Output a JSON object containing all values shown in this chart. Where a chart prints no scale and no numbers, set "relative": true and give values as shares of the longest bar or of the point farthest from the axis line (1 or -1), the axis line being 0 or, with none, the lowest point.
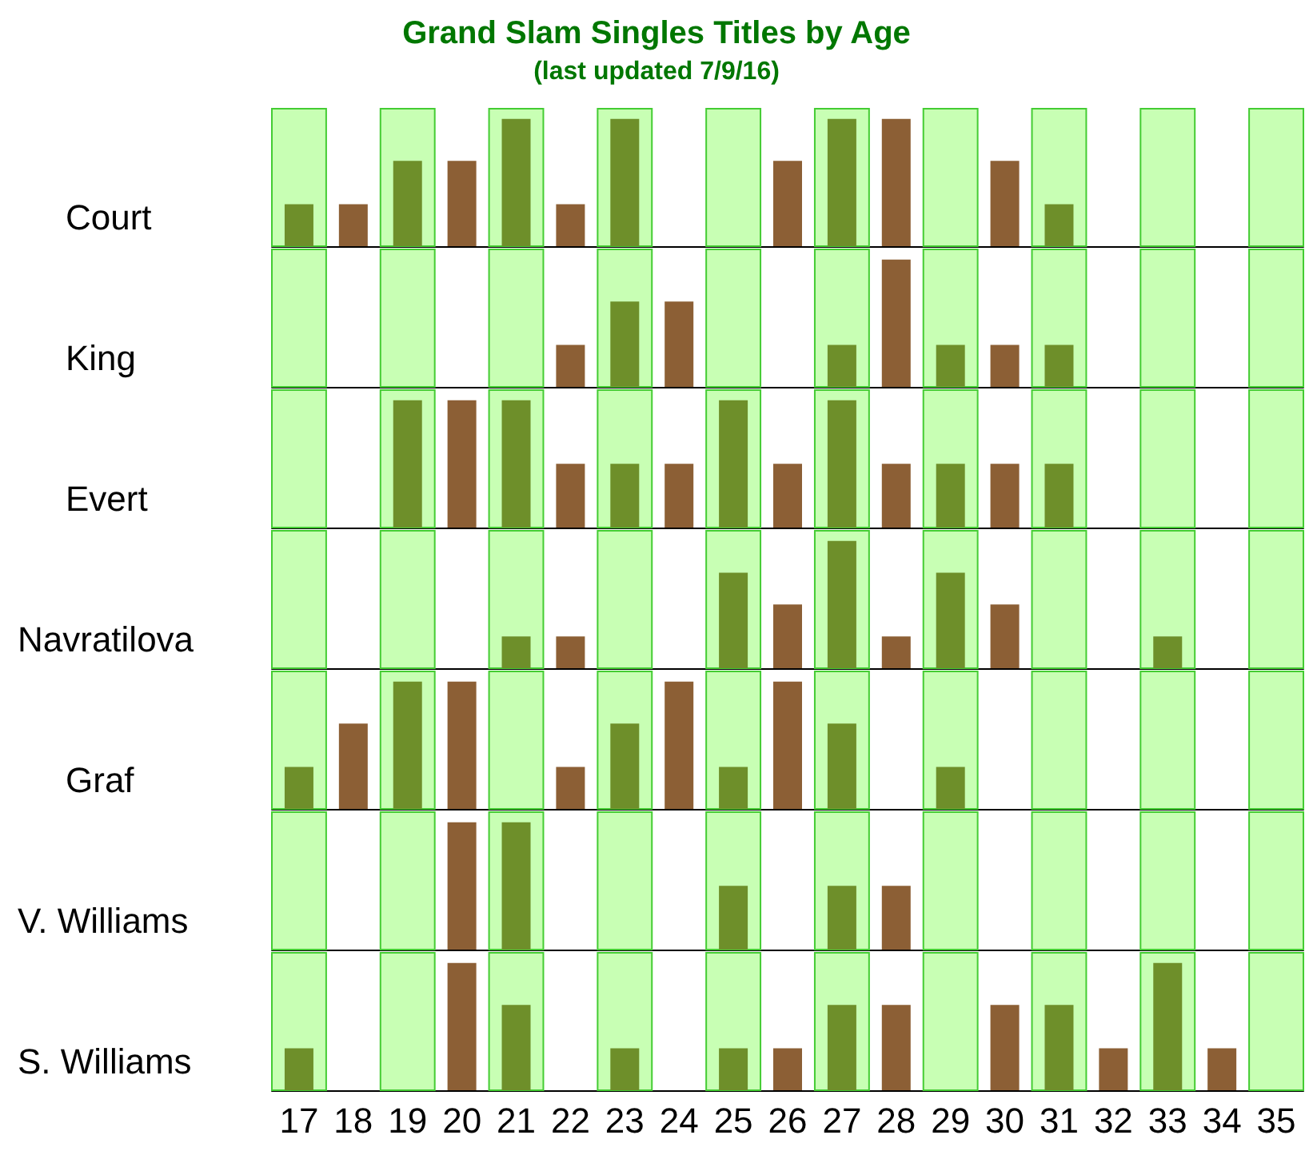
{
  "chart_data": [
    {
      "type": "bar",
      "title": "Grand Slam Singles Titles by Age",
      "subtitle": "(last updated 7/9/16)",
      "ylabel": "Court",
      "relative": true,
      "tick_labels": false,
      "categories": [
        "17",
        "18",
        "19",
        "20",
        "21",
        "22",
        "23",
        "24",
        "25",
        "26",
        "27",
        "28",
        "29",
        "30",
        "31",
        "32",
        "33",
        "34",
        "35"
      ],
      "values": [
        0.33,
        0.33,
        0.67,
        0.67,
        1,
        0.33,
        1,
        0,
        0,
        0.67,
        1,
        1,
        0,
        0.67,
        0.33,
        0,
        0,
        0,
        0
      ],
      "colors": [
        "#6e8f2a",
        "#8c5f35",
        "#6e8f2a",
        "#8c5f35",
        "#6e8f2a",
        "#8c5f35",
        "#6e8f2a",
        "#8c5f35",
        "#6e8f2a",
        "#8c5f35",
        "#6e8f2a",
        "#8c5f35",
        "#6e8f2a",
        "#8c5f35",
        "#6e8f2a",
        "#8c5f35",
        "#6e8f2a",
        "#8c5f35",
        "#6e8f2a"
      ],
      "bands": [
        {
          "axis": "x",
          "from": "17",
          "to": "17",
          "color": "#c8ffb4"
        },
        {
          "axis": "x",
          "from": "19",
          "to": "19",
          "color": "#c8ffb4"
        },
        {
          "axis": "x",
          "from": "21",
          "to": "21",
          "color": "#c8ffb4"
        },
        {
          "axis": "x",
          "from": "23",
          "to": "23",
          "color": "#c8ffb4"
        },
        {
          "axis": "x",
          "from": "25",
          "to": "25",
          "color": "#c8ffb4"
        },
        {
          "axis": "x",
          "from": "27",
          "to": "27",
          "color": "#c8ffb4"
        },
        {
          "axis": "x",
          "from": "29",
          "to": "29",
          "color": "#c8ffb4"
        },
        {
          "axis": "x",
          "from": "31",
          "to": "31",
          "color": "#c8ffb4"
        },
        {
          "axis": "x",
          "from": "33",
          "to": "33",
          "color": "#c8ffb4"
        },
        {
          "axis": "x",
          "from": "35",
          "to": "35",
          "color": "#c8ffb4"
        }
      ]
    },
    {
      "type": "bar",
      "ylabel": "King",
      "relative": true,
      "tick_labels": false,
      "categories": [
        "17",
        "18",
        "19",
        "20",
        "21",
        "22",
        "23",
        "24",
        "25",
        "26",
        "27",
        "28",
        "29",
        "30",
        "31",
        "32",
        "33",
        "34",
        "35"
      ],
      "values": [
        0,
        0,
        0,
        0,
        0,
        0.33,
        0.67,
        0.67,
        0,
        0,
        0.33,
        1,
        0.33,
        0.33,
        0.33,
        0,
        0,
        0,
        0
      ],
      "colors": [
        "#6e8f2a",
        "#8c5f35",
        "#6e8f2a",
        "#8c5f35",
        "#6e8f2a",
        "#8c5f35",
        "#6e8f2a",
        "#8c5f35",
        "#6e8f2a",
        "#8c5f35",
        "#6e8f2a",
        "#8c5f35",
        "#6e8f2a",
        "#8c5f35",
        "#6e8f2a",
        "#8c5f35",
        "#6e8f2a",
        "#8c5f35",
        "#6e8f2a"
      ],
      "bands": [
        {
          "axis": "x",
          "from": "17",
          "to": "17",
          "color": "#c8ffb4"
        },
        {
          "axis": "x",
          "from": "19",
          "to": "19",
          "color": "#c8ffb4"
        },
        {
          "axis": "x",
          "from": "21",
          "to": "21",
          "color": "#c8ffb4"
        },
        {
          "axis": "x",
          "from": "23",
          "to": "23",
          "color": "#c8ffb4"
        },
        {
          "axis": "x",
          "from": "25",
          "to": "25",
          "color": "#c8ffb4"
        },
        {
          "axis": "x",
          "from": "27",
          "to": "27",
          "color": "#c8ffb4"
        },
        {
          "axis": "x",
          "from": "29",
          "to": "29",
          "color": "#c8ffb4"
        },
        {
          "axis": "x",
          "from": "31",
          "to": "31",
          "color": "#c8ffb4"
        },
        {
          "axis": "x",
          "from": "33",
          "to": "33",
          "color": "#c8ffb4"
        },
        {
          "axis": "x",
          "from": "35",
          "to": "35",
          "color": "#c8ffb4"
        }
      ]
    },
    {
      "type": "bar",
      "ylabel": "Evert",
      "relative": true,
      "tick_labels": false,
      "categories": [
        "17",
        "18",
        "19",
        "20",
        "21",
        "22",
        "23",
        "24",
        "25",
        "26",
        "27",
        "28",
        "29",
        "30",
        "31",
        "32",
        "33",
        "34",
        "35"
      ],
      "values": [
        0,
        0,
        1,
        1,
        1,
        0.5,
        0.5,
        0.5,
        1,
        0.5,
        1,
        0.5,
        0.5,
        0.5,
        0.5,
        0,
        0,
        0,
        0
      ],
      "colors": [
        "#6e8f2a",
        "#8c5f35",
        "#6e8f2a",
        "#8c5f35",
        "#6e8f2a",
        "#8c5f35",
        "#6e8f2a",
        "#8c5f35",
        "#6e8f2a",
        "#8c5f35",
        "#6e8f2a",
        "#8c5f35",
        "#6e8f2a",
        "#8c5f35",
        "#6e8f2a",
        "#8c5f35",
        "#6e8f2a",
        "#8c5f35",
        "#6e8f2a"
      ],
      "bands": [
        {
          "axis": "x",
          "from": "17",
          "to": "17",
          "color": "#c8ffb4"
        },
        {
          "axis": "x",
          "from": "19",
          "to": "19",
          "color": "#c8ffb4"
        },
        {
          "axis": "x",
          "from": "21",
          "to": "21",
          "color": "#c8ffb4"
        },
        {
          "axis": "x",
          "from": "23",
          "to": "23",
          "color": "#c8ffb4"
        },
        {
          "axis": "x",
          "from": "25",
          "to": "25",
          "color": "#c8ffb4"
        },
        {
          "axis": "x",
          "from": "27",
          "to": "27",
          "color": "#c8ffb4"
        },
        {
          "axis": "x",
          "from": "29",
          "to": "29",
          "color": "#c8ffb4"
        },
        {
          "axis": "x",
          "from": "31",
          "to": "31",
          "color": "#c8ffb4"
        },
        {
          "axis": "x",
          "from": "33",
          "to": "33",
          "color": "#c8ffb4"
        },
        {
          "axis": "x",
          "from": "35",
          "to": "35",
          "color": "#c8ffb4"
        }
      ]
    },
    {
      "type": "bar",
      "ylabel": "Navratilova",
      "relative": true,
      "tick_labels": false,
      "categories": [
        "17",
        "18",
        "19",
        "20",
        "21",
        "22",
        "23",
        "24",
        "25",
        "26",
        "27",
        "28",
        "29",
        "30",
        "31",
        "32",
        "33",
        "34",
        "35"
      ],
      "values": [
        0,
        0,
        0,
        0,
        0.25,
        0.25,
        0,
        0,
        0.75,
        0.5,
        1,
        0.25,
        0.75,
        0.5,
        0,
        0,
        0.25,
        0,
        0
      ],
      "colors": [
        "#6e8f2a",
        "#8c5f35",
        "#6e8f2a",
        "#8c5f35",
        "#6e8f2a",
        "#8c5f35",
        "#6e8f2a",
        "#8c5f35",
        "#6e8f2a",
        "#8c5f35",
        "#6e8f2a",
        "#8c5f35",
        "#6e8f2a",
        "#8c5f35",
        "#6e8f2a",
        "#8c5f35",
        "#6e8f2a",
        "#8c5f35",
        "#6e8f2a"
      ],
      "bands": [
        {
          "axis": "x",
          "from": "17",
          "to": "17",
          "color": "#c8ffb4"
        },
        {
          "axis": "x",
          "from": "19",
          "to": "19",
          "color": "#c8ffb4"
        },
        {
          "axis": "x",
          "from": "21",
          "to": "21",
          "color": "#c8ffb4"
        },
        {
          "axis": "x",
          "from": "23",
          "to": "23",
          "color": "#c8ffb4"
        },
        {
          "axis": "x",
          "from": "25",
          "to": "25",
          "color": "#c8ffb4"
        },
        {
          "axis": "x",
          "from": "27",
          "to": "27",
          "color": "#c8ffb4"
        },
        {
          "axis": "x",
          "from": "29",
          "to": "29",
          "color": "#c8ffb4"
        },
        {
          "axis": "x",
          "from": "31",
          "to": "31",
          "color": "#c8ffb4"
        },
        {
          "axis": "x",
          "from": "33",
          "to": "33",
          "color": "#c8ffb4"
        },
        {
          "axis": "x",
          "from": "35",
          "to": "35",
          "color": "#c8ffb4"
        }
      ]
    },
    {
      "type": "bar",
      "ylabel": "Graf",
      "relative": true,
      "tick_labels": false,
      "categories": [
        "17",
        "18",
        "19",
        "20",
        "21",
        "22",
        "23",
        "24",
        "25",
        "26",
        "27",
        "28",
        "29",
        "30",
        "31",
        "32",
        "33",
        "34",
        "35"
      ],
      "values": [
        0.33,
        0.67,
        1,
        1,
        0,
        0.33,
        0.67,
        1,
        0.33,
        1,
        0.67,
        0,
        0.33,
        0,
        0,
        0,
        0,
        0,
        0
      ],
      "colors": [
        "#6e8f2a",
        "#8c5f35",
        "#6e8f2a",
        "#8c5f35",
        "#6e8f2a",
        "#8c5f35",
        "#6e8f2a",
        "#8c5f35",
        "#6e8f2a",
        "#8c5f35",
        "#6e8f2a",
        "#8c5f35",
        "#6e8f2a",
        "#8c5f35",
        "#6e8f2a",
        "#8c5f35",
        "#6e8f2a",
        "#8c5f35",
        "#6e8f2a"
      ],
      "bands": [
        {
          "axis": "x",
          "from": "17",
          "to": "17",
          "color": "#c8ffb4"
        },
        {
          "axis": "x",
          "from": "19",
          "to": "19",
          "color": "#c8ffb4"
        },
        {
          "axis": "x",
          "from": "21",
          "to": "21",
          "color": "#c8ffb4"
        },
        {
          "axis": "x",
          "from": "23",
          "to": "23",
          "color": "#c8ffb4"
        },
        {
          "axis": "x",
          "from": "25",
          "to": "25",
          "color": "#c8ffb4"
        },
        {
          "axis": "x",
          "from": "27",
          "to": "27",
          "color": "#c8ffb4"
        },
        {
          "axis": "x",
          "from": "29",
          "to": "29",
          "color": "#c8ffb4"
        },
        {
          "axis": "x",
          "from": "31",
          "to": "31",
          "color": "#c8ffb4"
        },
        {
          "axis": "x",
          "from": "33",
          "to": "33",
          "color": "#c8ffb4"
        },
        {
          "axis": "x",
          "from": "35",
          "to": "35",
          "color": "#c8ffb4"
        }
      ]
    },
    {
      "type": "bar",
      "ylabel": "V. Williams",
      "relative": true,
      "tick_labels": false,
      "categories": [
        "17",
        "18",
        "19",
        "20",
        "21",
        "22",
        "23",
        "24",
        "25",
        "26",
        "27",
        "28",
        "29",
        "30",
        "31",
        "32",
        "33",
        "34",
        "35"
      ],
      "values": [
        0,
        0,
        0,
        1,
        1,
        0,
        0,
        0,
        0.5,
        0,
        0.5,
        0.5,
        0,
        0,
        0,
        0,
        0,
        0,
        0
      ],
      "colors": [
        "#6e8f2a",
        "#8c5f35",
        "#6e8f2a",
        "#8c5f35",
        "#6e8f2a",
        "#8c5f35",
        "#6e8f2a",
        "#8c5f35",
        "#6e8f2a",
        "#8c5f35",
        "#6e8f2a",
        "#8c5f35",
        "#6e8f2a",
        "#8c5f35",
        "#6e8f2a",
        "#8c5f35",
        "#6e8f2a",
        "#8c5f35",
        "#6e8f2a"
      ],
      "bands": [
        {
          "axis": "x",
          "from": "17",
          "to": "17",
          "color": "#c8ffb4"
        },
        {
          "axis": "x",
          "from": "19",
          "to": "19",
          "color": "#c8ffb4"
        },
        {
          "axis": "x",
          "from": "21",
          "to": "21",
          "color": "#c8ffb4"
        },
        {
          "axis": "x",
          "from": "23",
          "to": "23",
          "color": "#c8ffb4"
        },
        {
          "axis": "x",
          "from": "25",
          "to": "25",
          "color": "#c8ffb4"
        },
        {
          "axis": "x",
          "from": "27",
          "to": "27",
          "color": "#c8ffb4"
        },
        {
          "axis": "x",
          "from": "29",
          "to": "29",
          "color": "#c8ffb4"
        },
        {
          "axis": "x",
          "from": "31",
          "to": "31",
          "color": "#c8ffb4"
        },
        {
          "axis": "x",
          "from": "33",
          "to": "33",
          "color": "#c8ffb4"
        },
        {
          "axis": "x",
          "from": "35",
          "to": "35",
          "color": "#c8ffb4"
        }
      ]
    },
    {
      "type": "bar",
      "ylabel": "S. Williams",
      "relative": true,
      "tick_labels": "x",
      "categories": [
        "17",
        "18",
        "19",
        "20",
        "21",
        "22",
        "23",
        "24",
        "25",
        "26",
        "27",
        "28",
        "29",
        "30",
        "31",
        "32",
        "33",
        "34",
        "35"
      ],
      "values": [
        0.33,
        0,
        0,
        1,
        0.67,
        0,
        0.33,
        0,
        0.33,
        0.33,
        0.67,
        0.67,
        0,
        0.67,
        0.67,
        0.33,
        1,
        0.33,
        0
      ],
      "colors": [
        "#6e8f2a",
        "#8c5f35",
        "#6e8f2a",
        "#8c5f35",
        "#6e8f2a",
        "#8c5f35",
        "#6e8f2a",
        "#8c5f35",
        "#6e8f2a",
        "#8c5f35",
        "#6e8f2a",
        "#8c5f35",
        "#6e8f2a",
        "#8c5f35",
        "#6e8f2a",
        "#8c5f35",
        "#6e8f2a",
        "#8c5f35",
        "#6e8f2a"
      ],
      "bands": [
        {
          "axis": "x",
          "from": "17",
          "to": "17",
          "color": "#c8ffb4"
        },
        {
          "axis": "x",
          "from": "19",
          "to": "19",
          "color": "#c8ffb4"
        },
        {
          "axis": "x",
          "from": "21",
          "to": "21",
          "color": "#c8ffb4"
        },
        {
          "axis": "x",
          "from": "23",
          "to": "23",
          "color": "#c8ffb4"
        },
        {
          "axis": "x",
          "from": "25",
          "to": "25",
          "color": "#c8ffb4"
        },
        {
          "axis": "x",
          "from": "27",
          "to": "27",
          "color": "#c8ffb4"
        },
        {
          "axis": "x",
          "from": "29",
          "to": "29",
          "color": "#c8ffb4"
        },
        {
          "axis": "x",
          "from": "31",
          "to": "31",
          "color": "#c8ffb4"
        },
        {
          "axis": "x",
          "from": "33",
          "to": "33",
          "color": "#c8ffb4"
        },
        {
          "axis": "x",
          "from": "35",
          "to": "35",
          "color": "#c8ffb4"
        }
      ]
    }
  ]
}
